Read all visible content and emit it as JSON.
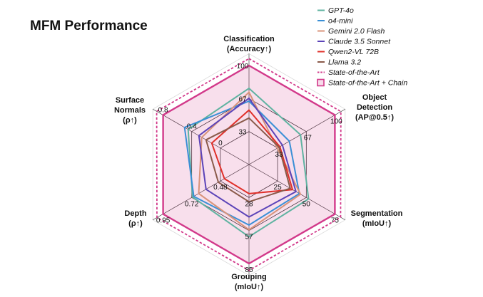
{
  "title": "MFM Performance",
  "chart_data": {
    "type": "radar",
    "title": "MFM Performance",
    "axes": [
      {
        "name": "Classification",
        "lines": [
          "Classification",
          "(Accuracy↑)"
        ],
        "ticks": [
          "33",
          "67",
          "100"
        ],
        "range": [
          0,
          100
        ]
      },
      {
        "name": "Object Detection",
        "lines": [
          "Object",
          "Detection",
          "(AP@0.5↑)"
        ],
        "ticks": [
          "33",
          "67",
          "100"
        ],
        "range": [
          0,
          100
        ]
      },
      {
        "name": "Segmentation",
        "lines": [
          "Segmentation",
          "(mIoU↑)"
        ],
        "ticks": [
          "25",
          "50",
          "75"
        ],
        "range": [
          0,
          75
        ]
      },
      {
        "name": "Grouping",
        "lines": [
          "Grouping",
          "(mIoU↑)"
        ],
        "ticks": [
          "28",
          "57",
          "85"
        ],
        "range": [
          0,
          85
        ]
      },
      {
        "name": "Depth",
        "lines": [
          "Depth",
          "(ρ↑)"
        ],
        "ticks": [
          "0.48",
          "0.72",
          "0.95"
        ],
        "range": [
          0.25,
          0.95
        ]
      },
      {
        "name": "Surface Normals",
        "lines": [
          "Surface",
          "Normals",
          "(ρ↑)"
        ],
        "ticks": [
          "0",
          "0.4",
          "0.8"
        ],
        "range": [
          -0.4,
          0.8
        ]
      }
    ],
    "series": [
      {
        "name": "GPT-4o",
        "color": "#5fb3a1",
        "style": "solid",
        "values": [
          77,
          60,
          52,
          62,
          0.71,
          0.45
        ]
      },
      {
        "name": "o4-mini",
        "color": "#3a8fd6",
        "style": "solid",
        "values": [
          64,
          47,
          44,
          52,
          0.7,
          0.5
        ]
      },
      {
        "name": "Gemini 2.0 Flash",
        "color": "#d8937a",
        "style": "solid",
        "values": [
          73,
          33,
          45,
          56,
          0.66,
          0.26
        ]
      },
      {
        "name": "Claude 3.5 Sonnet",
        "color": "#5b43b8",
        "style": "solid",
        "values": [
          67,
          39,
          41,
          45,
          0.6,
          0.3
        ]
      },
      {
        "name": "Qwen2-VL 72B",
        "color": "#e0302a",
        "style": "solid",
        "values": [
          55,
          36,
          38,
          25,
          0.45,
          0.12
        ]
      },
      {
        "name": "Llama 3.2",
        "color": "#8a5a4a",
        "style": "solid",
        "values": [
          47,
          35,
          36,
          32,
          0.5,
          0.2
        ]
      },
      {
        "name": "State-of-the-Art",
        "color": "#d2398a",
        "style": "dashed",
        "values": [
          107,
          107,
          80,
          91,
          1.0,
          0.89
        ]
      },
      {
        "name": "State-of-the-Art + Chain",
        "color": "#d2398a",
        "style": "filled",
        "values": [
          100,
          100,
          75,
          85,
          0.95,
          0.8
        ]
      }
    ],
    "legend_position": "top-right",
    "grid": true
  }
}
